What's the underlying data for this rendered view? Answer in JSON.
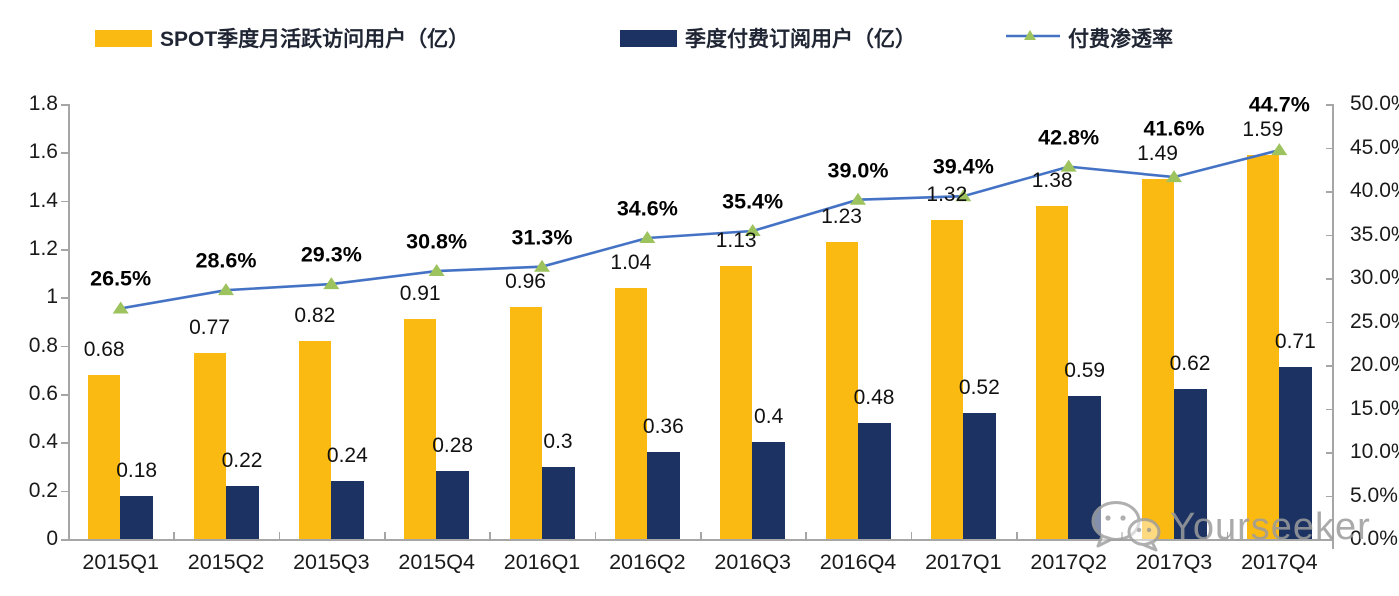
{
  "legend": [
    {
      "label": "SPOT季度月活跃访问用户（亿）",
      "type": "bar",
      "color": "#FBBA12"
    },
    {
      "label": "季度付费订阅用户（亿）",
      "type": "bar",
      "color": "#1B3263"
    },
    {
      "label": "付费渗透率",
      "type": "line",
      "color": "#4472C4",
      "marker_color": "#9DC35E"
    }
  ],
  "watermark": {
    "text": "Yourseeker",
    "icon": "wechat-icon"
  },
  "chart_data": {
    "type": "bar",
    "subtype": "combo-bar-line-dual-axis",
    "categories": [
      "2015Q1",
      "2015Q2",
      "2015Q3",
      "2015Q4",
      "2016Q1",
      "2016Q2",
      "2016Q3",
      "2016Q4",
      "2017Q1",
      "2017Q2",
      "2017Q3",
      "2017Q4"
    ],
    "series": [
      {
        "name": "SPOT季度月活跃访问用户（亿）",
        "type": "bar",
        "axis": "left",
        "color": "#FBBA12",
        "values": [
          0.68,
          0.77,
          0.82,
          0.91,
          0.96,
          1.04,
          1.13,
          1.23,
          1.32,
          1.38,
          1.49,
          1.59
        ],
        "labels": [
          "0.68",
          "0.77",
          "0.82",
          "0.91",
          "0.96",
          "1.04",
          "1.13",
          "1.23",
          "1.32",
          "1.38",
          "1.49",
          "1.59"
        ]
      },
      {
        "name": "季度付费订阅用户（亿）",
        "type": "bar",
        "axis": "left",
        "color": "#1B3263",
        "values": [
          0.18,
          0.22,
          0.24,
          0.28,
          0.3,
          0.36,
          0.4,
          0.48,
          0.52,
          0.59,
          0.62,
          0.71
        ],
        "labels": [
          "0.18",
          "0.22",
          "0.24",
          "0.28",
          "0.3",
          "0.36",
          "0.4",
          "0.48",
          "0.52",
          "0.59",
          "0.62",
          "0.71"
        ]
      },
      {
        "name": "付费渗透率",
        "type": "line",
        "axis": "right",
        "color": "#4472C4",
        "marker": "triangle",
        "marker_color": "#9DC35E",
        "values": [
          26.5,
          28.6,
          29.3,
          30.8,
          31.3,
          34.6,
          35.4,
          39.0,
          39.4,
          42.8,
          41.6,
          44.7
        ],
        "labels": [
          "26.5%",
          "28.6%",
          "29.3%",
          "30.8%",
          "31.3%",
          "34.6%",
          "35.4%",
          "39.0%",
          "39.4%",
          "42.8%",
          "41.6%",
          "44.7%"
        ]
      }
    ],
    "left_axis": {
      "min": 0,
      "max": 1.8,
      "step": 0.2,
      "ticks": [
        "0",
        "0.2",
        "0.4",
        "0.6",
        "0.8",
        "1",
        "1.2",
        "1.4",
        "1.6",
        "1.8"
      ]
    },
    "right_axis": {
      "min": 0,
      "max": 50,
      "step": 5,
      "ticks": [
        "0.0%",
        "5.0%",
        "10.0%",
        "15.0%",
        "20.0%",
        "25.0%",
        "30.0%",
        "35.0%",
        "40.0%",
        "45.0%",
        "50.0%"
      ]
    },
    "grid": false,
    "legend_position": "top",
    "title": ""
  }
}
